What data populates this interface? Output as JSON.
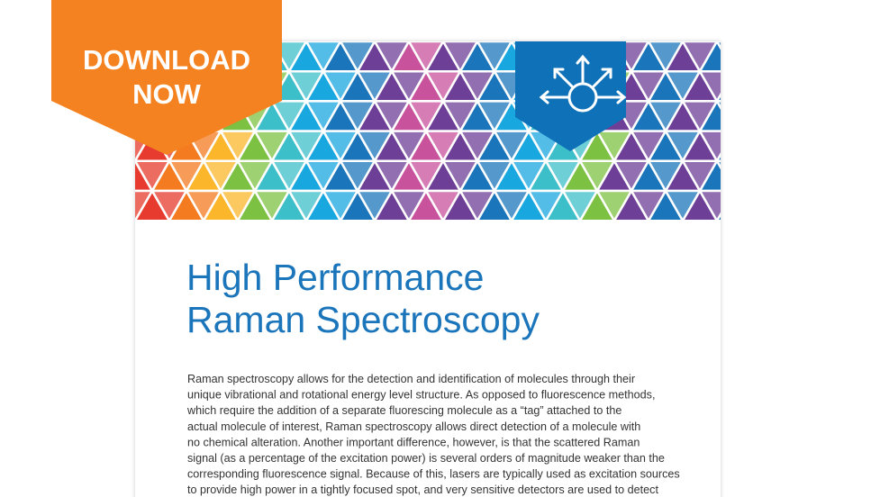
{
  "banner": {
    "lines": [
      "DOWNLOAD",
      "NOW"
    ]
  },
  "document": {
    "title_lines": [
      "High Performance",
      "Raman Spectroscopy"
    ],
    "body_lines": [
      "Raman spectroscopy allows for the detection and identification of molecules through their",
      "unique vibrational and rotational energy level structure. As opposed to fluorescence methods,",
      "which require the addition of a separate fluorescing molecule as a “tag” attached to the",
      "actual molecule of interest, Raman spectroscopy allows direct detection of a molecule with",
      "no chemical alteration. Another important difference, however, is that the scattered Raman",
      "signal (as a percentage of the excitation power) is several orders of magnitude weaker than the",
      "corresponding fluorescence signal. Because of this, lasers are typically used as excitation sources",
      "to provide high power in a tightly focused spot, and very sensitive detectors are used to detect"
    ]
  }
}
